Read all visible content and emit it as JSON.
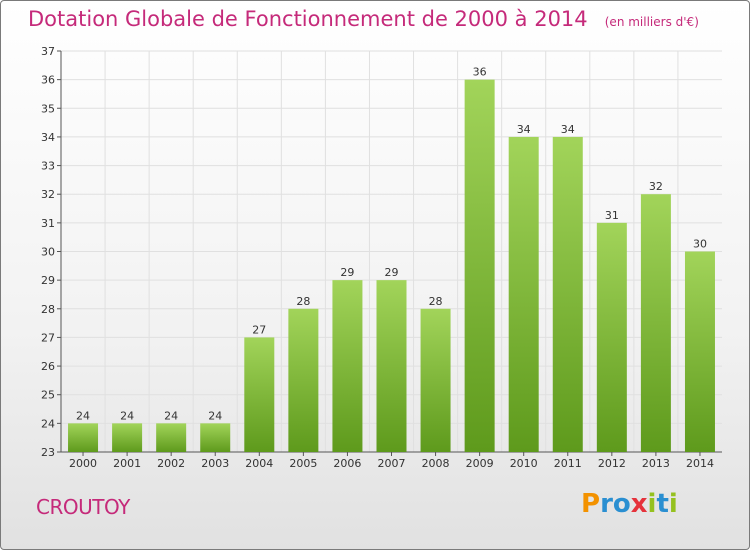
{
  "title": "Dotation Globale de Fonctionnement de 2000 à 2014",
  "subtitle": "(en milliers d'€)",
  "commune": "CROUTOY",
  "logo": {
    "text": "Proxiti",
    "letters": [
      {
        "ch": "P",
        "color": "#f39200"
      },
      {
        "ch": "r",
        "color": "#2a8fd1"
      },
      {
        "ch": "o",
        "color": "#2a8fd1"
      },
      {
        "ch": "x",
        "color": "#e5323b"
      },
      {
        "ch": "i",
        "color": "#95c11f"
      },
      {
        "ch": "t",
        "color": "#2a8fd1"
      },
      {
        "ch": "i",
        "color": "#95c11f"
      }
    ]
  },
  "colors": {
    "title": "#c52a7a",
    "bar_top": "#a2d45a",
    "bar_bottom": "#5e9a1c",
    "grid": "#e0e0e0"
  },
  "chart_data": {
    "type": "bar",
    "categories": [
      "2000",
      "2001",
      "2002",
      "2003",
      "2004",
      "2005",
      "2006",
      "2007",
      "2008",
      "2009",
      "2010",
      "2011",
      "2012",
      "2013",
      "2014"
    ],
    "values": [
      24,
      24,
      24,
      24,
      27,
      28,
      29,
      29,
      28,
      36,
      34,
      34,
      31,
      32,
      30
    ],
    "ylim": [
      23,
      37
    ],
    "yticks": [
      23,
      24,
      25,
      26,
      27,
      28,
      29,
      30,
      31,
      32,
      33,
      34,
      35,
      36,
      37
    ],
    "grid": true,
    "data_labels": true
  }
}
